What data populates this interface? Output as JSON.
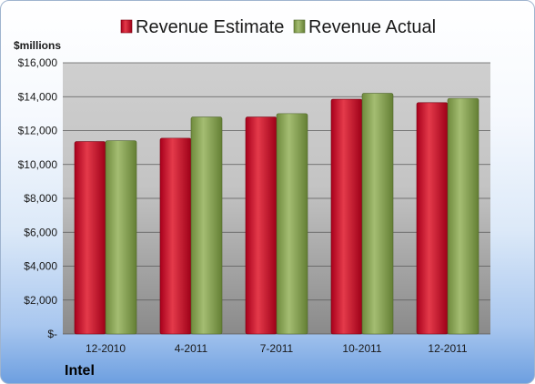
{
  "chart_data": {
    "type": "bar",
    "categories": [
      "12-2010",
      "4-2011",
      "7-2011",
      "10-2011",
      "12-2011"
    ],
    "series": [
      {
        "name": "Revenue Estimate",
        "values": [
          11350,
          11550,
          12800,
          13850,
          13650
        ],
        "color": "#c8102e"
      },
      {
        "name": "Revenue Actual",
        "values": [
          11400,
          12800,
          13000,
          14200,
          13900
        ],
        "color": "#8aa35a"
      }
    ],
    "ylim": [
      0,
      16000
    ],
    "yticks": [
      0,
      2000,
      4000,
      6000,
      8000,
      10000,
      12000,
      14000,
      16000
    ],
    "ytick_labels": [
      "$-",
      "$2,000",
      "$4,000",
      "$6,000",
      "$8,000",
      "$10,000",
      "$12,000",
      "$14,000",
      "$16,000"
    ],
    "unit_label": "$millions",
    "legend_position": "top",
    "grid": true
  },
  "company": "Intel"
}
